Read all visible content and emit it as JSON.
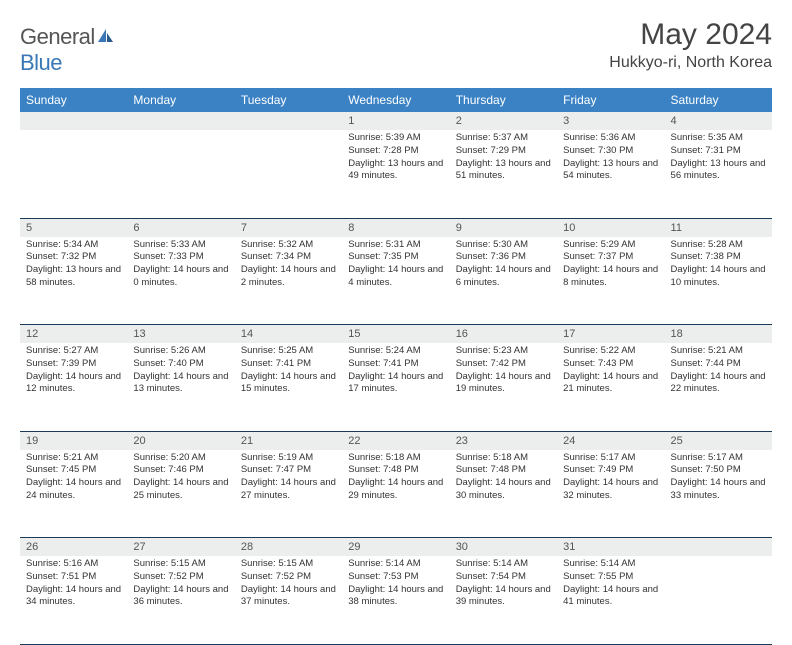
{
  "logo": {
    "text1": "General",
    "text2": "Blue"
  },
  "title": "May 2024",
  "location": "Hukkyo-ri, North Korea",
  "headers": [
    "Sunday",
    "Monday",
    "Tuesday",
    "Wednesday",
    "Thursday",
    "Friday",
    "Saturday"
  ],
  "colors": {
    "header_bg": "#3a82c4",
    "header_text": "#ffffff",
    "daynum_bg": "#eceded",
    "border": "#1a3a5c",
    "logo_blue": "#3a78b5",
    "text": "#333333"
  },
  "weeks": [
    [
      {
        "n": "",
        "sr": "",
        "ss": "",
        "dl": ""
      },
      {
        "n": "",
        "sr": "",
        "ss": "",
        "dl": ""
      },
      {
        "n": "",
        "sr": "",
        "ss": "",
        "dl": ""
      },
      {
        "n": "1",
        "sr": "5:39 AM",
        "ss": "7:28 PM",
        "dl": "13 hours and 49 minutes."
      },
      {
        "n": "2",
        "sr": "5:37 AM",
        "ss": "7:29 PM",
        "dl": "13 hours and 51 minutes."
      },
      {
        "n": "3",
        "sr": "5:36 AM",
        "ss": "7:30 PM",
        "dl": "13 hours and 54 minutes."
      },
      {
        "n": "4",
        "sr": "5:35 AM",
        "ss": "7:31 PM",
        "dl": "13 hours and 56 minutes."
      }
    ],
    [
      {
        "n": "5",
        "sr": "5:34 AM",
        "ss": "7:32 PM",
        "dl": "13 hours and 58 minutes."
      },
      {
        "n": "6",
        "sr": "5:33 AM",
        "ss": "7:33 PM",
        "dl": "14 hours and 0 minutes."
      },
      {
        "n": "7",
        "sr": "5:32 AM",
        "ss": "7:34 PM",
        "dl": "14 hours and 2 minutes."
      },
      {
        "n": "8",
        "sr": "5:31 AM",
        "ss": "7:35 PM",
        "dl": "14 hours and 4 minutes."
      },
      {
        "n": "9",
        "sr": "5:30 AM",
        "ss": "7:36 PM",
        "dl": "14 hours and 6 minutes."
      },
      {
        "n": "10",
        "sr": "5:29 AM",
        "ss": "7:37 PM",
        "dl": "14 hours and 8 minutes."
      },
      {
        "n": "11",
        "sr": "5:28 AM",
        "ss": "7:38 PM",
        "dl": "14 hours and 10 minutes."
      }
    ],
    [
      {
        "n": "12",
        "sr": "5:27 AM",
        "ss": "7:39 PM",
        "dl": "14 hours and 12 minutes."
      },
      {
        "n": "13",
        "sr": "5:26 AM",
        "ss": "7:40 PM",
        "dl": "14 hours and 13 minutes."
      },
      {
        "n": "14",
        "sr": "5:25 AM",
        "ss": "7:41 PM",
        "dl": "14 hours and 15 minutes."
      },
      {
        "n": "15",
        "sr": "5:24 AM",
        "ss": "7:41 PM",
        "dl": "14 hours and 17 minutes."
      },
      {
        "n": "16",
        "sr": "5:23 AM",
        "ss": "7:42 PM",
        "dl": "14 hours and 19 minutes."
      },
      {
        "n": "17",
        "sr": "5:22 AM",
        "ss": "7:43 PM",
        "dl": "14 hours and 21 minutes."
      },
      {
        "n": "18",
        "sr": "5:21 AM",
        "ss": "7:44 PM",
        "dl": "14 hours and 22 minutes."
      }
    ],
    [
      {
        "n": "19",
        "sr": "5:21 AM",
        "ss": "7:45 PM",
        "dl": "14 hours and 24 minutes."
      },
      {
        "n": "20",
        "sr": "5:20 AM",
        "ss": "7:46 PM",
        "dl": "14 hours and 25 minutes."
      },
      {
        "n": "21",
        "sr": "5:19 AM",
        "ss": "7:47 PM",
        "dl": "14 hours and 27 minutes."
      },
      {
        "n": "22",
        "sr": "5:18 AM",
        "ss": "7:48 PM",
        "dl": "14 hours and 29 minutes."
      },
      {
        "n": "23",
        "sr": "5:18 AM",
        "ss": "7:48 PM",
        "dl": "14 hours and 30 minutes."
      },
      {
        "n": "24",
        "sr": "5:17 AM",
        "ss": "7:49 PM",
        "dl": "14 hours and 32 minutes."
      },
      {
        "n": "25",
        "sr": "5:17 AM",
        "ss": "7:50 PM",
        "dl": "14 hours and 33 minutes."
      }
    ],
    [
      {
        "n": "26",
        "sr": "5:16 AM",
        "ss": "7:51 PM",
        "dl": "14 hours and 34 minutes."
      },
      {
        "n": "27",
        "sr": "5:15 AM",
        "ss": "7:52 PM",
        "dl": "14 hours and 36 minutes."
      },
      {
        "n": "28",
        "sr": "5:15 AM",
        "ss": "7:52 PM",
        "dl": "14 hours and 37 minutes."
      },
      {
        "n": "29",
        "sr": "5:14 AM",
        "ss": "7:53 PM",
        "dl": "14 hours and 38 minutes."
      },
      {
        "n": "30",
        "sr": "5:14 AM",
        "ss": "7:54 PM",
        "dl": "14 hours and 39 minutes."
      },
      {
        "n": "31",
        "sr": "5:14 AM",
        "ss": "7:55 PM",
        "dl": "14 hours and 41 minutes."
      },
      {
        "n": "",
        "sr": "",
        "ss": "",
        "dl": ""
      }
    ]
  ],
  "labels": {
    "sunrise": "Sunrise:",
    "sunset": "Sunset:",
    "daylight": "Daylight:"
  }
}
